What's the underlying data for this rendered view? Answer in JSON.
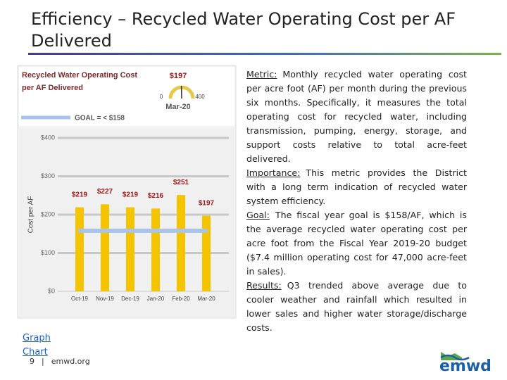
{
  "slide": {
    "title": "Efficiency – Recycled Water Operating Cost per AF Delivered",
    "paragraphs": [
      {
        "heading": "Metric:",
        "body": "Monthly recycled water operating cost per acre foot (AF) per month during the previous six months. Specifically, it measures the total operating cost for recycled water, including transmission, pumping, energy, storage, and support costs relative to total acre-feet delivered."
      },
      {
        "heading": "Importance:",
        "body": "This metric provides the District with a long term indication of recycled water system efficiency."
      },
      {
        "heading": "Goal:",
        "body": "The fiscal year goal is $158/AF, which is the average recycled water operating cost per acre foot from the Fiscal Year 2019-20 budget ($7.4 million operating cost for 47,000 acre-feet in sales)."
      },
      {
        "heading": "Results:",
        "body": "Q3 trended above average due to cooler weather and rainfall which resulted in lower sales and higher water storage/discharge costs."
      }
    ],
    "link": "Graph Chart",
    "page": "9",
    "separator": "|",
    "site": "emwd.org",
    "logo": "emwd"
  },
  "chart_data": {
    "type": "bar",
    "title": "Recycled Water Operating Cost per AF Delivered",
    "categories": [
      "Oct-19",
      "Nov-19",
      "Dec-19",
      "Jan-20",
      "Feb-20",
      "Mar-20"
    ],
    "values": [
      219,
      227,
      219,
      216,
      251,
      197
    ],
    "value_labels": [
      "$219",
      "$227",
      "$219",
      "$216",
      "$251",
      "$197"
    ],
    "color": "#f5c400",
    "label_color": "#a01818",
    "y_label": "Cost per AF",
    "ylim": [
      0,
      400
    ],
    "yticks": [
      {
        "value": 0,
        "label": "$0"
      },
      {
        "value": 100,
        "label": "$100"
      },
      {
        "value": 200,
        "label": "$200"
      },
      {
        "value": 300,
        "label": "$300"
      },
      {
        "value": 400,
        "label": "$400"
      }
    ],
    "grid": true,
    "goal": {
      "value": 158,
      "label": "GOAL = < $158",
      "color": "#a9c4e8"
    },
    "gauge": {
      "value": 197,
      "value_label": "$197",
      "min": 0,
      "max": 400,
      "period": "Mar-20"
    }
  }
}
